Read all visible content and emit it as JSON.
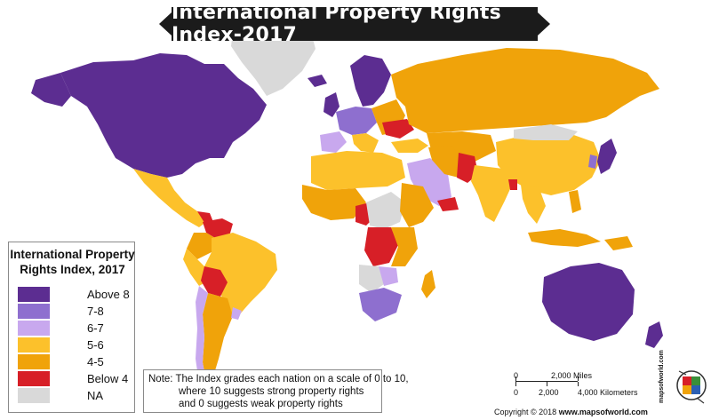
{
  "title": "International Property Rights Index-2017",
  "legend": {
    "title_line1": "International Property",
    "title_line2": "Rights Index, 2017",
    "items": [
      {
        "label": "Above 8",
        "color": "#5c2d91"
      },
      {
        "label": "7-8",
        "color": "#8e6fcf"
      },
      {
        "label": "6-7",
        "color": "#c8a8ee"
      },
      {
        "label": "5-6",
        "color": "#fcc12b"
      },
      {
        "label": "4-5",
        "color": "#f0a30a"
      },
      {
        "label": "Below 4",
        "color": "#d71f27"
      },
      {
        "label": "NA",
        "color": "#d9d9d9"
      }
    ]
  },
  "note": {
    "line1": "Note: The Index grades each nation on a scale of 0 to 10,",
    "line2": "where 10 suggests strong property rights",
    "line3": "and 0 suggests weak property rights"
  },
  "scale": {
    "miles_zero": "0",
    "miles_label": "2,000 Miles",
    "km_zero": "0",
    "km_mid": "2,000",
    "km_label": "4,000 Kilometers"
  },
  "copyright": {
    "prefix": "Copyright © 2018",
    "site": "www.mapsofworld.com"
  },
  "logo_text": "mapsofworld.com",
  "colors": {
    "above8": "#5c2d91",
    "r78": "#8e6fcf",
    "r67": "#c8a8ee",
    "r56": "#fcc12b",
    "r45": "#f0a30a",
    "below4": "#d71f27",
    "na": "#d9d9d9"
  }
}
